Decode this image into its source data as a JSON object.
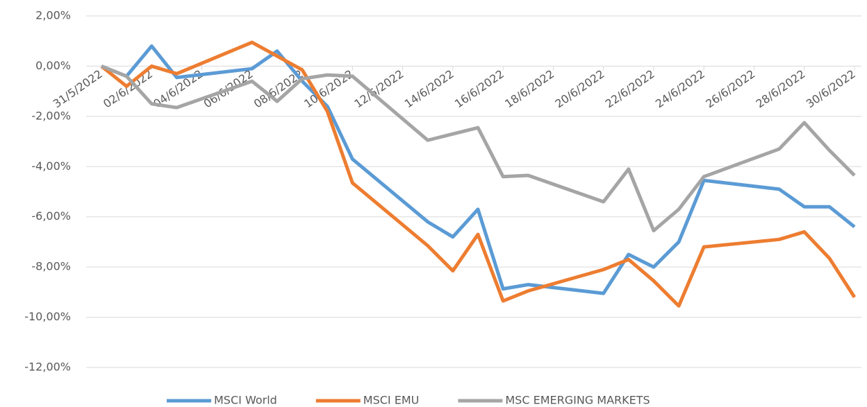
{
  "chart_data": {
    "type": "line",
    "x": [
      "2022-05-31",
      "2022-06-01",
      "2022-06-02",
      "2022-06-03",
      "2022-06-06",
      "2022-06-07",
      "2022-06-08",
      "2022-06-09",
      "2022-06-10",
      "2022-06-13",
      "2022-06-14",
      "2022-06-15",
      "2022-06-16",
      "2022-06-17",
      "2022-06-20",
      "2022-06-21",
      "2022-06-22",
      "2022-06-23",
      "2022-06-24",
      "2022-06-27",
      "2022-06-28",
      "2022-06-29",
      "2022-06-30"
    ],
    "series": [
      {
        "name": "MSCI World",
        "color": "#5b9bd5",
        "values": [
          0,
          -0.4,
          0.8,
          -0.45,
          -0.1,
          0.6,
          -0.6,
          -1.6,
          -3.7,
          -6.2,
          -6.8,
          -5.7,
          -8.87,
          -8.7,
          -9.05,
          -7.5,
          -8.0,
          -7.0,
          -4.55,
          -4.9,
          -5.6,
          -5.6,
          -6.4
        ]
      },
      {
        "name": "MSCI EMU",
        "color": "#ed7d31",
        "values": [
          0,
          -0.8,
          0.0,
          -0.3,
          0.95,
          0.4,
          -0.15,
          -1.8,
          -4.65,
          -7.15,
          -8.15,
          -6.7,
          -9.35,
          -8.95,
          -8.1,
          -7.7,
          -8.55,
          -9.55,
          -7.2,
          -6.9,
          -6.6,
          -7.65,
          -9.2
        ]
      },
      {
        "name": "MSC EMERGING MARKETS",
        "color": "#a5a5a5",
        "values": [
          0,
          -0.4,
          -1.5,
          -1.65,
          -0.6,
          -1.4,
          -0.5,
          -0.35,
          -0.4,
          -2.95,
          -2.7,
          -2.45,
          -4.4,
          -4.35,
          -5.4,
          -4.1,
          -6.55,
          -5.7,
          -4.4,
          -3.3,
          -2.25,
          -3.35,
          -4.35
        ]
      }
    ],
    "xlim": [
      "2022-05-31",
      "2022-06-30"
    ],
    "xticks": [
      {
        "value": "2022-05-31",
        "label": "31/5/2022"
      },
      {
        "value": "2022-06-02",
        "label": "02/6/2022"
      },
      {
        "value": "2022-06-04",
        "label": "04/6/2022"
      },
      {
        "value": "2022-06-06",
        "label": "06/6/2022"
      },
      {
        "value": "2022-06-08",
        "label": "08/6/2022"
      },
      {
        "value": "2022-06-10",
        "label": "10/6/2022"
      },
      {
        "value": "2022-06-12",
        "label": "12/6/2022"
      },
      {
        "value": "2022-06-14",
        "label": "14/6/2022"
      },
      {
        "value": "2022-06-16",
        "label": "16/6/2022"
      },
      {
        "value": "2022-06-18",
        "label": "18/6/2022"
      },
      {
        "value": "2022-06-20",
        "label": "20/6/2022"
      },
      {
        "value": "2022-06-22",
        "label": "22/6/2022"
      },
      {
        "value": "2022-06-24",
        "label": "24/6/2022"
      },
      {
        "value": "2022-06-26",
        "label": "26/6/2022"
      },
      {
        "value": "2022-06-28",
        "label": "28/6/2022"
      },
      {
        "value": "2022-06-30",
        "label": "30/6/2022"
      }
    ],
    "ylim": [
      -12,
      2
    ],
    "yticks": [
      {
        "value": 2,
        "label": "2,00%"
      },
      {
        "value": 0,
        "label": "0,00%"
      },
      {
        "value": -2,
        "label": "-2,00%"
      },
      {
        "value": -4,
        "label": "-4,00%"
      },
      {
        "value": -6,
        "label": "-6,00%"
      },
      {
        "value": -8,
        "label": "-8,00%"
      },
      {
        "value": -10,
        "label": "-10,00%"
      },
      {
        "value": -12,
        "label": "-12,00%"
      }
    ],
    "grid": true,
    "legend": "bottom"
  }
}
